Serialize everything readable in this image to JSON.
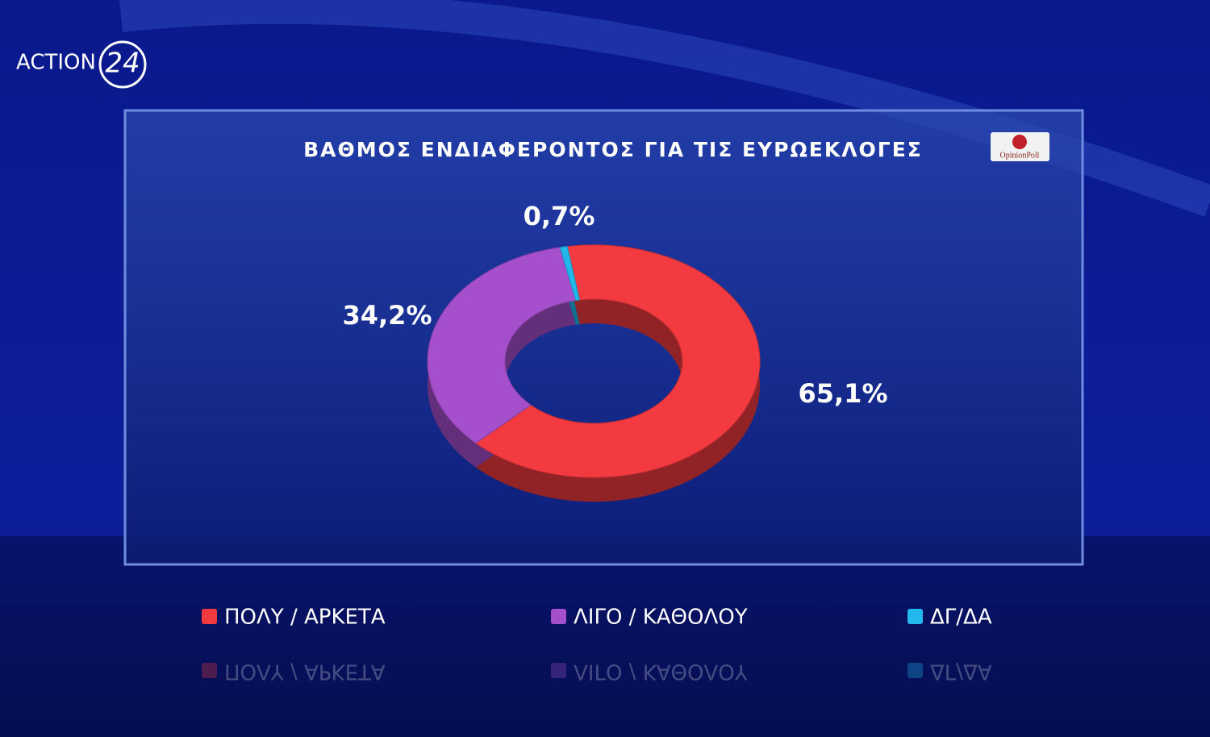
{
  "branding": {
    "channel": "ACTION",
    "channel_number": "24",
    "pollster": "OpinionPoll"
  },
  "chart_data": {
    "type": "donut",
    "title": "ΒΑΘΜΟΣ ΕΝΔΙΑΦΕΡΟΝΤΟΣ ΓΙΑ ΤΙΣ ΕΥΡΩΕΚΛΟΓΕΣ",
    "categories": [
      "ΠΟΛΥ / ΑΡΚΕΤΑ",
      "ΛΙΓΟ / ΚΑΘΟΛΟΥ",
      "ΔΓ/ΔΑ"
    ],
    "values": [
      65.1,
      34.2,
      0.7
    ],
    "value_labels": [
      "65,1%",
      "34,2%",
      "0,7%"
    ],
    "colors": [
      "#f23a40",
      "#a64fcc",
      "#22b8ec"
    ]
  }
}
